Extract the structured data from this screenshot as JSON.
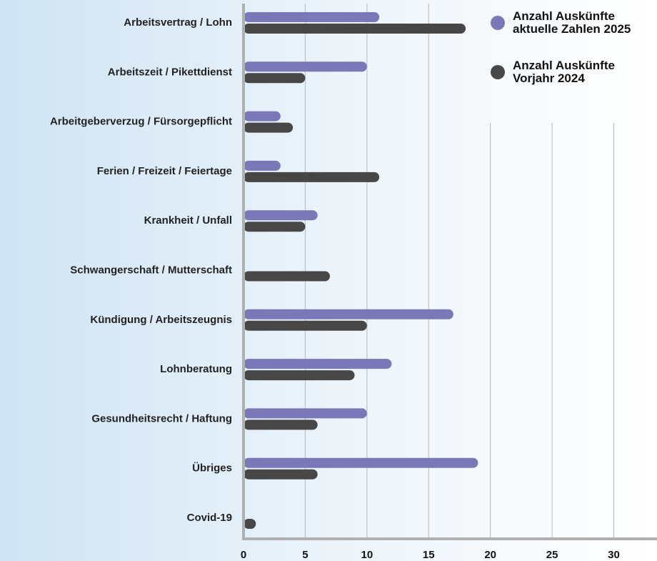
{
  "chart_data": {
    "type": "hbar",
    "categories": [
      "Arbeitsvertrag / Lohn",
      "Arbeitszeit / Pikettdienst",
      "Arbeitgeberverzug / Fürsorgepflicht",
      "Ferien / Freizeit / Feiertage",
      "Krankheit / Unfall",
      "Schwangerschaft / Mutterschaft",
      "Kündigung / Arbeitszeugnis",
      "Lohnberatung",
      "Gesundheitsrecht / Haftung",
      "Übriges",
      "Covid-19"
    ],
    "series": [
      {
        "name": "Anzahl Auskünfte aktuelle Zahlen 2025",
        "color": "#7b78b8",
        "values": [
          11,
          10,
          3,
          3,
          6,
          0,
          17,
          12,
          10,
          19,
          0
        ]
      },
      {
        "name": "Anzahl Auskünfte Vorjahr 2024",
        "color": "#474747",
        "values": [
          18,
          5,
          4,
          11,
          5,
          7,
          10,
          9,
          6,
          6,
          1
        ]
      }
    ],
    "xlim": [
      0,
      33.5
    ],
    "xticks": [
      0,
      5,
      10,
      15,
      20,
      25,
      30
    ],
    "grid": true,
    "legend": "top-right"
  }
}
